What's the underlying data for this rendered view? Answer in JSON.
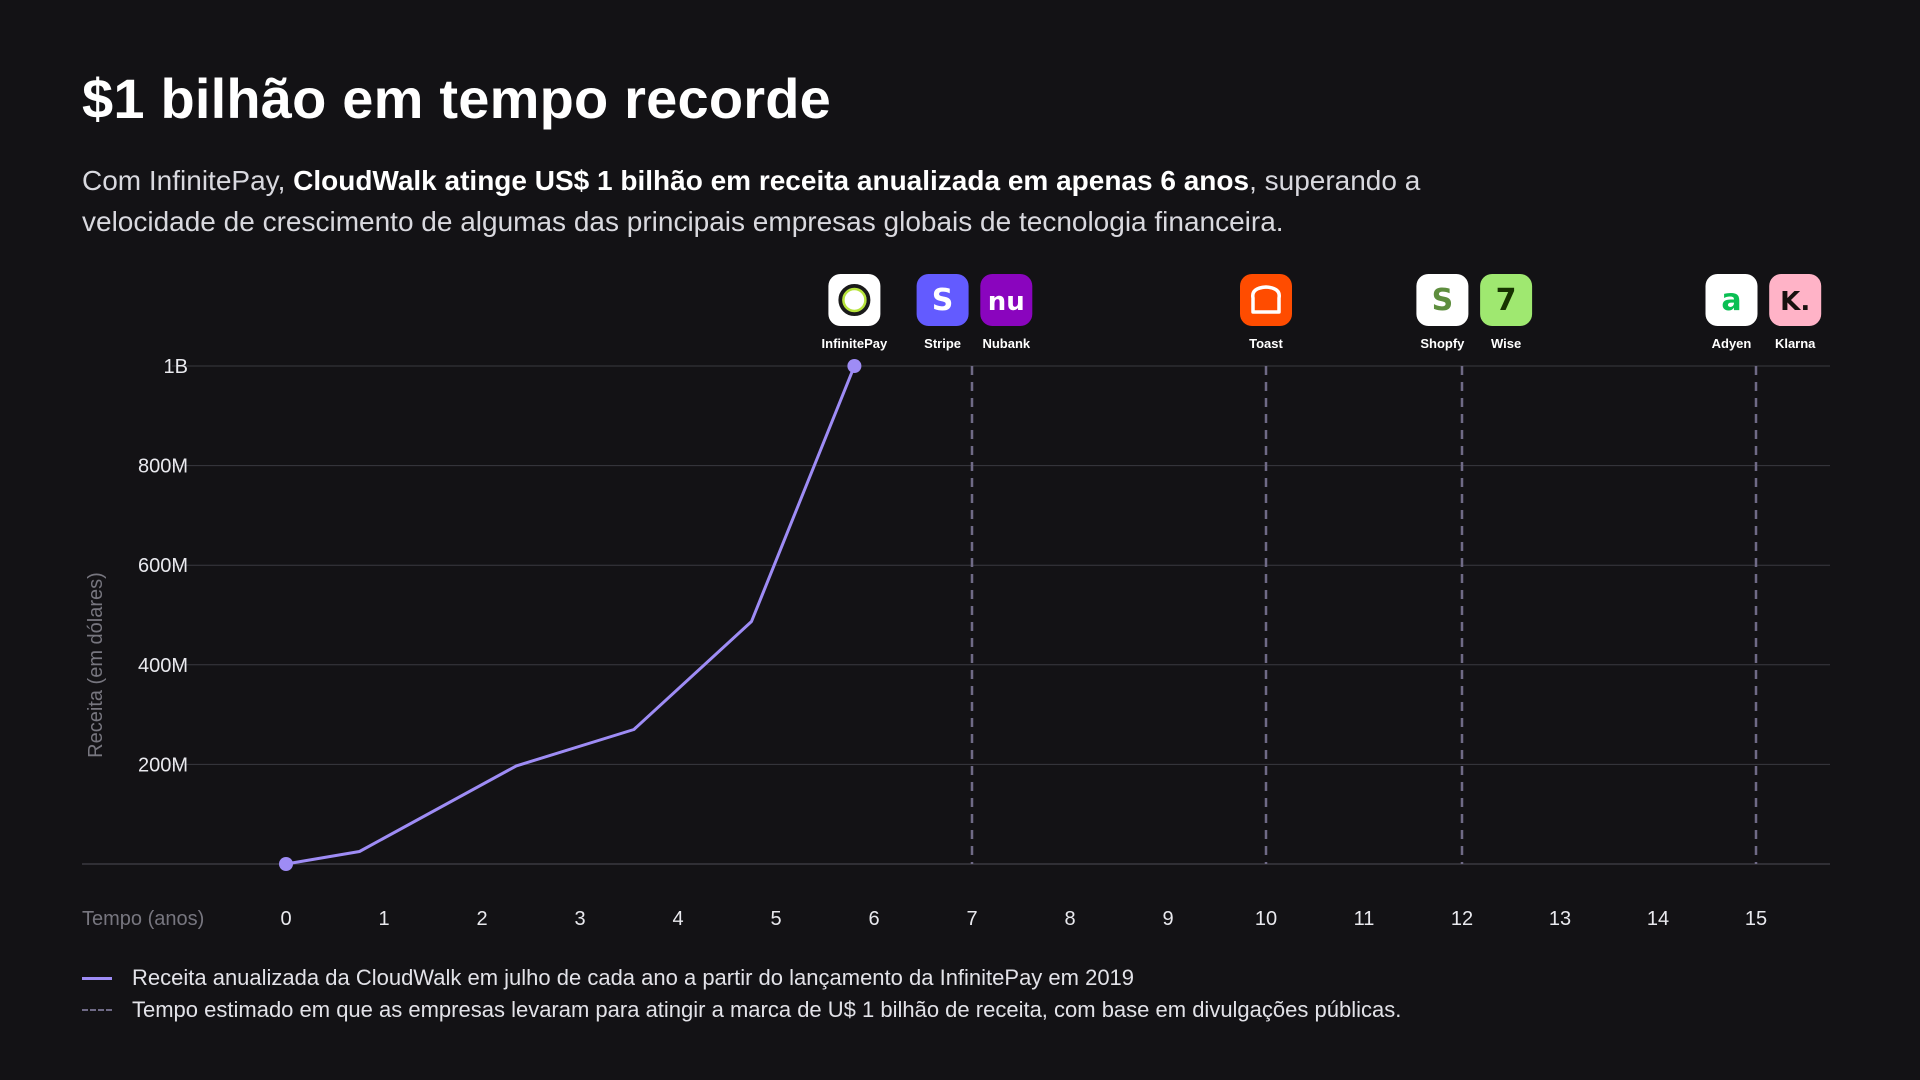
{
  "title": "$1 bilhão em tempo recorde",
  "subtitle": {
    "prefix": "Com InfinitePay, ",
    "bold": "CloudWalk atinge US$ 1 bilhão em receita anualizada em apenas 6 anos",
    "suffix": ", superando a velocidade de crescimento de algumas das principais empresas globais de tecnologia financeira."
  },
  "chart_data": {
    "type": "line",
    "title": "$1 bilhão em tempo recorde",
    "xlabel": "Tempo (anos)",
    "ylabel": "Receita (em dólares)",
    "xlim": [
      0,
      15
    ],
    "ylim": [
      0,
      1000000000
    ],
    "x_ticks": [
      0,
      1,
      2,
      3,
      4,
      5,
      6,
      7,
      8,
      9,
      10,
      11,
      12,
      13,
      14,
      15
    ],
    "y_ticks": [
      {
        "value": 200000000,
        "label": "200M"
      },
      {
        "value": 400000000,
        "label": "400M"
      },
      {
        "value": 600000000,
        "label": "600M"
      },
      {
        "value": 800000000,
        "label": "800M"
      },
      {
        "value": 1000000000,
        "label": "1B"
      }
    ],
    "grid": true,
    "series": [
      {
        "name": "Receita anualizada da CloudWalk em julho de cada ano a partir do lançamento da InfinitePay em 2019",
        "color": "#9e8cf5",
        "points": [
          [
            0,
            0
          ],
          [
            0.75,
            25000000
          ],
          [
            2.35,
            197000000
          ],
          [
            3.55,
            270000000
          ],
          [
            4.75,
            487000000
          ],
          [
            5.8,
            1000000000
          ]
        ],
        "markers": [
          [
            0,
            0
          ],
          [
            5.8,
            1000000000
          ]
        ]
      }
    ],
    "milestones": [
      {
        "year": 7,
        "companies": [
          "Stripe",
          "Nubank"
        ],
        "dashed_line": true
      },
      {
        "year": 10,
        "companies": [
          "Toast"
        ],
        "dashed_line": true
      },
      {
        "year": 12,
        "companies": [
          "Shopfy",
          "Wise"
        ],
        "dashed_line": true
      },
      {
        "year": 15,
        "companies": [
          "Adyen",
          "Klarna"
        ],
        "dashed_line": true
      }
    ],
    "logos": [
      {
        "name": "InfinitePay",
        "x": 5.8,
        "bg": "#ffffff",
        "fg": "#1b1b1b",
        "icon": "infinitepay-ring-icon"
      },
      {
        "name": "Stripe",
        "x": 6.7,
        "bg": "#635bff",
        "fg": "#ffffff",
        "icon": "stripe-s-icon",
        "glyph": "S"
      },
      {
        "name": "Nubank",
        "x": 7.35,
        "bg": "#8a05be",
        "fg": "#ffffff",
        "icon": "nubank-nu-icon",
        "glyph": "nu"
      },
      {
        "name": "Toast",
        "x": 10.0,
        "bg": "#ff4c00",
        "fg": "#ffffff",
        "icon": "toast-icon"
      },
      {
        "name": "Shopfy",
        "x": 11.8,
        "bg": "#ffffff",
        "fg": "#5e8e3e",
        "icon": "shopify-bag-icon",
        "glyph": "S"
      },
      {
        "name": "Wise",
        "x": 12.45,
        "bg": "#9fe870",
        "fg": "#163300",
        "icon": "wise-flag-icon",
        "glyph": "7"
      },
      {
        "name": "Adyen",
        "x": 14.75,
        "bg": "#ffffff",
        "fg": "#0abf53",
        "icon": "adyen-icon",
        "glyph": "a"
      },
      {
        "name": "Klarna",
        "x": 15.4,
        "bg": "#ffb3c7",
        "fg": "#17120f",
        "icon": "klarna-k-icon",
        "glyph": "K."
      }
    ],
    "legend_placement": "bottom-left"
  },
  "legend": {
    "solid": "Receita anualizada da CloudWalk em julho de cada ano a partir do lançamento da InfinitePay em 2019",
    "dashed": "Tempo estimado em que as empresas levaram para atingir a marca de U$ 1 bilhão de receita, com base em divulgações públicas."
  },
  "colors": {
    "background": "#131215",
    "line": "#9e8cf5",
    "milestone": "#6f6a86",
    "grid": "#3a3940"
  }
}
